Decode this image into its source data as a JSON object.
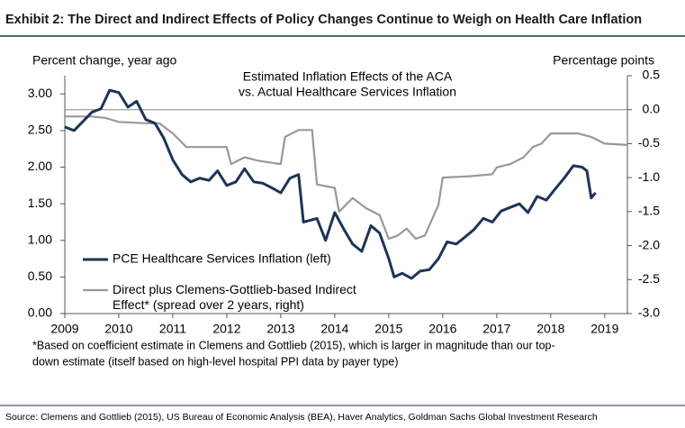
{
  "chart_data": {
    "type": "line",
    "title": "Exhibit 2: The Direct and Indirect Effects of Policy Changes Continue to Weigh on Health Care Inflation",
    "subtitle": [
      "Estimated Inflation Effects of the ACA",
      "vs. Actual Healthcare Services Inflation"
    ],
    "y_label": "Percent change, year ago",
    "y2_label": "Percentage points",
    "footnote": [
      "*Based on coefficient estimate in Clemens and Gottlieb (2015), which is larger in magnitude than our top-",
      "down estimate (itself based on high-level hospital PPI data by payer type)"
    ],
    "source": "Source: Clemens and Gottlieb (2015), US Bureau of Economic Analysis (BEA), Haver Analytics, Goldman Sachs Global Investment Research",
    "xlim": [
      2009,
      2019.42
    ],
    "xticks": [
      2009,
      2010,
      2011,
      2012,
      2013,
      2014,
      2015,
      2016,
      2017,
      2018,
      2019
    ],
    "ylim": [
      0,
      3.25
    ],
    "yticks": [
      {
        "value": 0,
        "label": "0.00"
      },
      {
        "value": 0.5,
        "label": "0.50"
      },
      {
        "value": 1,
        "label": "1.00"
      },
      {
        "value": 1.5,
        "label": "1.50"
      },
      {
        "value": 2,
        "label": "2.00"
      },
      {
        "value": 2.5,
        "label": "2.50"
      },
      {
        "value": 3,
        "label": "3.00"
      }
    ],
    "y2lim": [
      -3.0,
      0.5
    ],
    "y2ticks": [
      {
        "value": -3,
        "label": "-3.0"
      },
      -2.5,
      {
        "value": -2,
        "label": "-2.0"
      },
      -1.5,
      {
        "value": -1,
        "label": "-1.0"
      },
      -0.5,
      {
        "value": 0,
        "label": "0.0"
      },
      0.5
    ],
    "zero_line_y2": true,
    "series": [
      {
        "name": "PCE Healthcare Services Inflation (left)",
        "color": "#1c3557",
        "x": [
          2009.0,
          2009.17,
          2009.33,
          2009.5,
          2009.67,
          2009.83,
          2010.0,
          2010.17,
          2010.33,
          2010.5,
          2010.67,
          2010.83,
          2011.0,
          2011.17,
          2011.33,
          2011.5,
          2011.67,
          2011.83,
          2012.0,
          2012.17,
          2012.33,
          2012.5,
          2012.67,
          2012.83,
          2013.0,
          2013.17,
          2013.33,
          2013.42,
          2013.67,
          2013.83,
          2014.0,
          2014.17,
          2014.33,
          2014.5,
          2014.67,
          2014.83,
          2015.0,
          2015.1,
          2015.25,
          2015.42,
          2015.58,
          2015.75,
          2015.92,
          2016.08,
          2016.25,
          2016.42,
          2016.58,
          2016.75,
          2016.92,
          2017.08,
          2017.25,
          2017.42,
          2017.58,
          2017.75,
          2017.92,
          2018.08,
          2018.25,
          2018.42,
          2018.58,
          2018.67,
          2018.75,
          2018.83
        ],
        "values": [
          2.55,
          2.5,
          2.62,
          2.75,
          2.8,
          3.05,
          3.02,
          2.82,
          2.9,
          2.65,
          2.6,
          2.4,
          2.1,
          1.9,
          1.8,
          1.85,
          1.82,
          1.95,
          1.75,
          1.8,
          1.98,
          1.8,
          1.78,
          1.72,
          1.65,
          1.85,
          1.9,
          1.25,
          1.3,
          1.0,
          1.38,
          1.15,
          0.95,
          0.85,
          1.2,
          1.1,
          0.75,
          0.5,
          0.55,
          0.48,
          0.58,
          0.6,
          0.75,
          0.98,
          0.95,
          1.05,
          1.15,
          1.3,
          1.25,
          1.4,
          1.45,
          1.5,
          1.38,
          1.6,
          1.55,
          1.7,
          1.85,
          2.02,
          2.0,
          1.95,
          1.58,
          1.65
        ]
      },
      {
        "name": "Direct plus Clemens-Gottlieb-based Indirect Effect* (spread over 2 years, right)",
        "color": "#999999",
        "axis": "y2",
        "x": [
          2009.0,
          2009.5,
          2009.75,
          2010.0,
          2010.5,
          2010.75,
          2011.0,
          2011.25,
          2012.0,
          2012.08,
          2012.33,
          2012.58,
          2013.0,
          2013.08,
          2013.33,
          2013.58,
          2013.67,
          2014.0,
          2014.08,
          2014.33,
          2014.58,
          2014.83,
          2015.0,
          2015.17,
          2015.33,
          2015.5,
          2015.67,
          2015.92,
          2016.0,
          2016.5,
          2016.92,
          2017.0,
          2017.25,
          2017.5,
          2017.67,
          2017.83,
          2018.0,
          2018.5,
          2018.75,
          2019.0,
          2019.42
        ],
        "values": [
          -0.1,
          -0.1,
          -0.12,
          -0.18,
          -0.2,
          -0.2,
          -0.35,
          -0.55,
          -0.55,
          -0.8,
          -0.7,
          -0.75,
          -0.8,
          -0.4,
          -0.3,
          -0.3,
          -1.1,
          -1.15,
          -1.5,
          -1.3,
          -1.45,
          -1.55,
          -1.9,
          -1.85,
          -1.75,
          -1.9,
          -1.85,
          -1.4,
          -1.0,
          -0.98,
          -0.95,
          -0.85,
          -0.8,
          -0.7,
          -0.55,
          -0.5,
          -0.35,
          -0.35,
          -0.4,
          -0.5,
          -0.52
        ]
      }
    ]
  }
}
